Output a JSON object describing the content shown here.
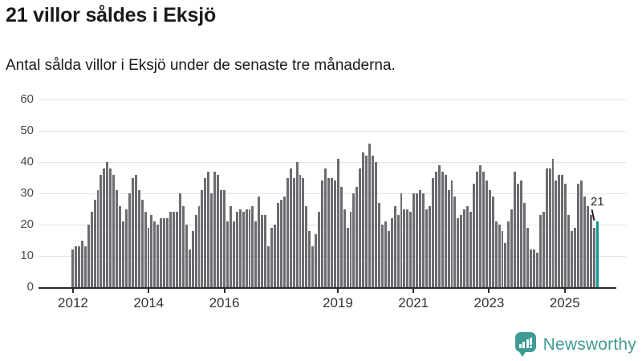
{
  "header": {
    "title": "21 villor såldes i Eksjö",
    "subtitle": "Antal sålda villor i Eksjö under de senaste tre månaderna."
  },
  "chart_data": {
    "type": "bar",
    "title": "21 villor såldes i Eksjö",
    "subtitle": "Antal sålda villor i Eksjö under de senaste tre månaderna.",
    "ylabel": "",
    "xlabel": "",
    "ylim": [
      0,
      60
    ],
    "grid": "horizontal",
    "yticks": [
      0,
      10,
      20,
      30,
      40,
      50,
      60
    ],
    "xticks": [
      {
        "label": "2012",
        "month_index": 0
      },
      {
        "label": "2014",
        "month_index": 24
      },
      {
        "label": "2016",
        "month_index": 48
      },
      {
        "label": "2019",
        "month_index": 84
      },
      {
        "label": "2021",
        "month_index": 108
      },
      {
        "label": "2023",
        "month_index": 132
      },
      {
        "label": "2025",
        "month_index": 156
      }
    ],
    "x_start": "2012-01",
    "values": [
      12,
      13,
      13,
      15,
      13,
      20,
      24,
      28,
      31,
      36,
      38,
      40,
      38,
      36,
      31,
      26,
      21,
      25,
      30,
      35,
      36,
      31,
      28,
      24,
      19,
      23,
      21,
      20,
      22,
      22,
      22,
      24,
      24,
      24,
      30,
      26,
      20,
      12,
      18,
      23,
      26,
      31,
      35,
      37,
      30,
      37,
      36,
      31,
      31,
      21,
      26,
      21,
      24,
      25,
      24,
      25,
      25,
      26,
      21,
      29,
      23,
      23,
      13,
      19,
      20,
      27,
      28,
      29,
      35,
      38,
      35,
      40,
      36,
      35,
      26,
      18,
      13,
      17,
      24,
      34,
      38,
      35,
      35,
      34,
      41,
      32,
      25,
      19,
      24,
      30,
      32,
      38,
      43,
      42,
      46,
      42,
      40,
      27,
      20,
      21,
      18,
      22,
      26,
      23,
      30,
      25,
      25,
      24,
      30,
      30,
      31,
      30,
      25,
      26,
      35,
      37,
      39,
      37,
      36,
      31,
      34,
      29,
      22,
      23,
      25,
      26,
      24,
      33,
      37,
      39,
      37,
      34,
      31,
      29,
      21,
      20,
      18,
      14,
      21,
      25,
      37,
      33,
      34,
      27,
      19,
      12,
      12,
      11,
      23,
      24,
      38,
      38,
      41,
      34,
      36,
      36,
      33,
      23,
      18,
      19,
      33,
      34,
      29,
      26,
      23,
      19,
      21
    ],
    "highlight": {
      "index": 166,
      "value": 21,
      "label": "21"
    },
    "bar_color": "#6b6b70",
    "highlight_color": "#019a98"
  },
  "footer": {
    "brand": "Newsworthy",
    "brand_color": "#3f9c94"
  }
}
